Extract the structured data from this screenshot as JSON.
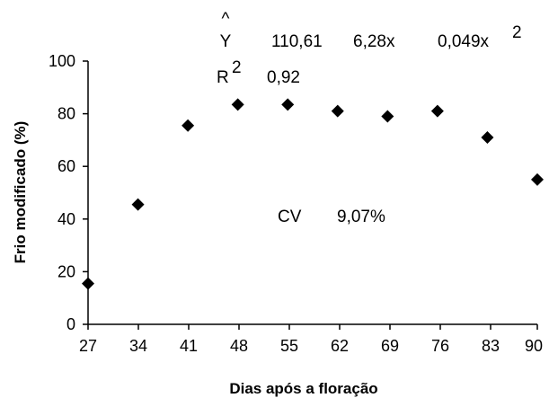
{
  "chart_data": {
    "type": "scatter",
    "xlabel": "Dias após a floração",
    "ylabel": "Frio modificado (%)",
    "x_ticks": [
      "27",
      "34",
      "41",
      "48",
      "55",
      "62",
      "69",
      "76",
      "83",
      "90"
    ],
    "y_ticks": [
      "0",
      "20",
      "40",
      "60",
      "80",
      "100"
    ],
    "xlim": [
      27,
      90
    ],
    "ylim": [
      0,
      100
    ],
    "grid": false,
    "series": [
      {
        "x": [
          27,
          34,
          41,
          48,
          55,
          62,
          69,
          76,
          83,
          90
        ],
        "y": [
          15.5,
          45.5,
          75.5,
          83.5,
          83.5,
          81,
          79,
          81,
          71,
          55
        ],
        "marker": "diamond",
        "color": "#000000"
      }
    ],
    "fit": {
      "type": "quadratic",
      "b0": 110.61,
      "b1": 6.28,
      "b2": -0.049,
      "color": "#000000"
    },
    "annotations": {
      "equation": {
        "lhs": "Y",
        "hat": "^",
        "b0": "110,61",
        "b1_term": "6,28x",
        "b2_term": "0,049x",
        "b2_exp": "2"
      },
      "r2": {
        "label": "R",
        "exp": "2",
        "value": "0,92"
      },
      "cv": {
        "label": "CV",
        "value": "9,07%"
      }
    }
  }
}
